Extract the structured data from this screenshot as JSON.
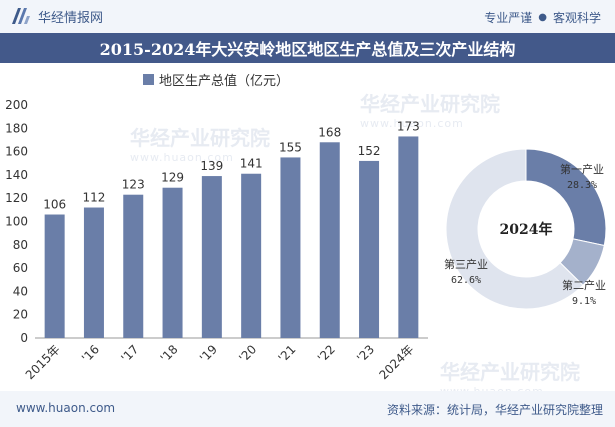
{
  "header": {
    "site_name": "华经情报网",
    "slogan_left": "专业严谨",
    "slogan_dot": "●",
    "slogan_right": "客观科学"
  },
  "title": "2015-2024年大兴安岭地区地区生产总值及三次产业结构",
  "watermarks": [
    {
      "main": "华经产业研究院",
      "sub": "www.huaon.com"
    },
    {
      "main": "华经产业研究院",
      "sub": "www.huaon.com"
    },
    {
      "main": "华经产业研究院",
      "sub": "www.huaon.com"
    }
  ],
  "footer": {
    "url": "www.huaon.com",
    "source": "资料来源：统计局，华经产业研究院整理"
  },
  "colors": {
    "bar": "#6a7ea8",
    "primary": "#6a7ea8",
    "secondary": "#a4b1cb",
    "tertiary": "#dfe4ee",
    "title_bg": "#43598a"
  },
  "chart_data": [
    {
      "type": "bar",
      "legend": "地区生产总值（亿元）",
      "categories": [
        "2015年",
        "'16",
        "'17",
        "'18",
        "'19",
        "'20",
        "'21",
        "'22",
        "'23",
        "2024年"
      ],
      "values": [
        106,
        112,
        123,
        129,
        139,
        141,
        155,
        168,
        152,
        173
      ],
      "ylim": [
        0,
        200
      ],
      "yticks": [
        0,
        20,
        40,
        60,
        80,
        100,
        120,
        140,
        160,
        180,
        200
      ],
      "grid": false
    },
    {
      "type": "pie",
      "center_label": "2024年",
      "slices": [
        {
          "label": "第一产业",
          "value": 28.3,
          "display": "28.3%"
        },
        {
          "label": "第二产业",
          "value": 9.1,
          "display": "9.1%"
        },
        {
          "label": "第三产业",
          "value": 62.6,
          "display": "62.6%"
        }
      ]
    }
  ]
}
